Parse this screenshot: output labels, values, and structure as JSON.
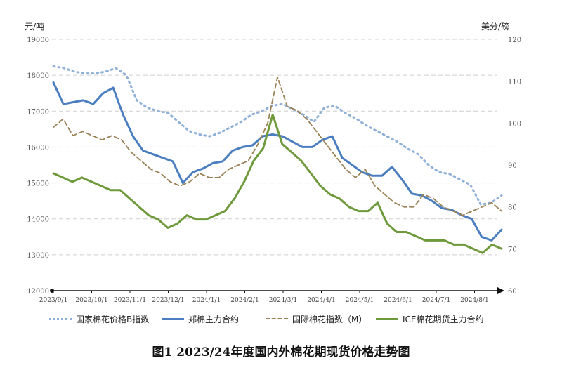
{
  "caption": "图1 2023/24年度国内外棉花期现货价格走势图",
  "chart_data": {
    "type": "line",
    "left_axis": {
      "unit": "元/吨",
      "min": 12000,
      "max": 19000,
      "ticks": [
        "12000",
        "13000",
        "14000",
        "15000",
        "16000",
        "17000",
        "18000",
        "19000"
      ]
    },
    "right_axis": {
      "unit": "美分/磅",
      "min": 60,
      "max": 120,
      "ticks": [
        "60",
        "70",
        "80",
        "90",
        "100",
        "110",
        "120"
      ]
    },
    "x_labels": [
      "2023/9/1",
      "2023/10/1",
      "2023/11/1",
      "2023/12/1",
      "2024/1/1",
      "2024/2/1",
      "2024/3/1",
      "2024/4/1",
      "2024/5/1",
      "2024/6/1",
      "2024/7/1",
      "2024/8/1"
    ],
    "grid": "horizontal dashed",
    "legend_position": "bottom",
    "series": [
      {
        "name": "国家棉花价格B指数",
        "axis": "left",
        "style": "dotted",
        "color": "#8fb0d8",
        "values": [
          18250,
          18200,
          18100,
          18050,
          18050,
          18100,
          18200,
          18000,
          17300,
          17100,
          17000,
          16950,
          16700,
          16450,
          16350,
          16300,
          16400,
          16550,
          16700,
          16900,
          17000,
          17150,
          17200,
          17050,
          16900,
          16700,
          17100,
          17150,
          16950,
          16800,
          16600,
          16450,
          16300,
          16150,
          15950,
          15800,
          15500,
          15300,
          15250,
          15100,
          14950,
          14400,
          14450,
          14650
        ]
      },
      {
        "name": "郑棉主力合约",
        "axis": "left",
        "style": "solid",
        "color": "#4a7ec0",
        "values": [
          17800,
          17200,
          17250,
          17300,
          17200,
          17500,
          17650,
          16900,
          16300,
          15900,
          15800,
          15700,
          15600,
          15000,
          15300,
          15400,
          15550,
          15600,
          15900,
          16000,
          16050,
          16300,
          16350,
          16300,
          16150,
          16000,
          16000,
          16200,
          16300,
          15700,
          15500,
          15300,
          15200,
          15200,
          15450,
          15100,
          14700,
          14650,
          14500,
          14300,
          14250,
          14100,
          14000,
          13500,
          13400,
          13700
        ]
      },
      {
        "name": "国际棉花指数（M）",
        "axis": "right",
        "style": "dashed",
        "color": "#998055",
        "values": [
          99,
          101,
          97,
          98,
          97,
          96,
          97,
          96,
          93,
          91,
          89,
          88,
          86,
          85,
          86,
          88,
          87,
          87,
          89,
          90,
          91,
          95,
          100,
          111,
          104,
          103,
          101,
          98,
          95,
          92,
          89,
          87,
          89,
          85,
          83,
          81,
          80,
          80,
          83,
          82,
          80,
          79,
          78,
          79,
          80,
          81,
          79
        ]
      },
      {
        "name": "ICE棉花期货主力合约",
        "axis": "right",
        "style": "solid",
        "color": "#6f9a3c",
        "values": [
          88,
          87,
          86,
          87,
          86,
          85,
          84,
          84,
          82,
          80,
          78,
          77,
          75,
          76,
          78,
          77,
          77,
          78,
          79,
          82,
          86,
          91,
          94,
          102,
          95,
          93,
          91,
          88,
          85,
          83,
          82,
          80,
          79,
          79,
          81,
          76,
          74,
          74,
          73,
          72,
          72,
          72,
          71,
          71,
          70,
          69,
          71,
          70
        ]
      }
    ]
  }
}
